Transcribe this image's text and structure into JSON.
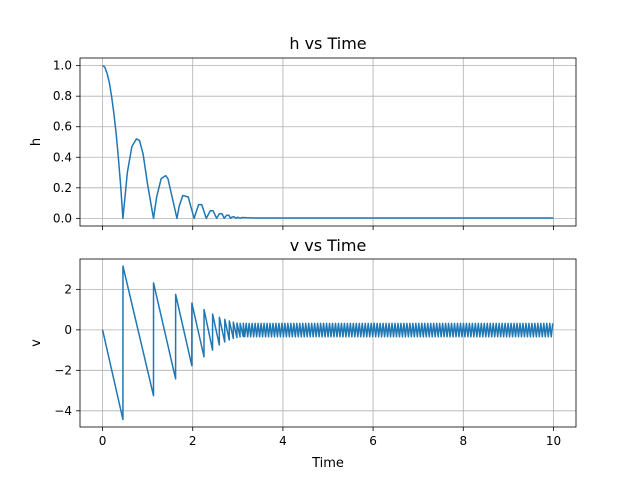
{
  "chart_data": [
    {
      "type": "line",
      "title": "h vs Time",
      "xlabel": "",
      "ylabel": "h",
      "xlim": [
        -0.5,
        10.5
      ],
      "ylim": [
        -0.05,
        1.05
      ],
      "xticks": [
        0,
        2,
        4,
        6,
        8,
        10
      ],
      "show_xtick_labels": false,
      "yticks": [
        0.0,
        0.2,
        0.4,
        0.6,
        0.8,
        1.0
      ],
      "ytick_labels": [
        "0.0",
        "0.2",
        "0.4",
        "0.6",
        "0.8",
        "1.0"
      ],
      "grid": true,
      "series": [
        {
          "color": "#1f77b4",
          "x": [
            0,
            0.05,
            0.1,
            0.15,
            0.2,
            0.25,
            0.3,
            0.35,
            0.4,
            0.452,
            0.55,
            0.65,
            0.75,
            0.82,
            0.9,
            1.0,
            1.1,
            1.13,
            1.2,
            1.3,
            1.4,
            1.45,
            1.55,
            1.65,
            1.7,
            1.78,
            1.9,
            2.03,
            2.13,
            2.2,
            2.3,
            2.39,
            2.45,
            2.53,
            2.59,
            2.65,
            2.7,
            2.75,
            2.8,
            2.84,
            2.88,
            2.92,
            2.96,
            3.0,
            3.05,
            3.1,
            3.2,
            3.3,
            3.5,
            4.0,
            5.0,
            6.0,
            7.0,
            8.0,
            9.0,
            10.0
          ],
          "y": [
            1.0,
            0.99,
            0.95,
            0.89,
            0.8,
            0.69,
            0.56,
            0.4,
            0.22,
            0.0,
            0.3,
            0.47,
            0.52,
            0.51,
            0.42,
            0.22,
            0.05,
            0.0,
            0.14,
            0.26,
            0.28,
            0.26,
            0.13,
            0.0,
            0.08,
            0.15,
            0.14,
            0.0,
            0.09,
            0.09,
            0.0,
            0.05,
            0.05,
            0.0,
            0.03,
            0.03,
            0.0,
            0.02,
            0.02,
            0.0,
            0.01,
            0.01,
            0.0,
            0.008,
            0.0,
            0.006,
            0.004,
            0.003,
            0.002,
            0.002,
            0.002,
            0.002,
            0.002,
            0.002,
            0.002,
            0.002
          ]
        }
      ]
    },
    {
      "type": "line",
      "title": "v vs Time",
      "xlabel": "Time",
      "ylabel": "v",
      "xlim": [
        -0.5,
        10.5
      ],
      "ylim": [
        -4.8,
        3.5
      ],
      "xticks": [
        0,
        2,
        4,
        6,
        8,
        10
      ],
      "show_xtick_labels": true,
      "xtick_labels": [
        "0",
        "2",
        "4",
        "6",
        "8",
        "10"
      ],
      "yticks": [
        -4,
        -2,
        0,
        2
      ],
      "ytick_labels": [
        "−4",
        "−2",
        "0",
        "2"
      ],
      "grid": true,
      "series": [
        {
          "color": "#1f77b4",
          "x": [
            0,
            0.452,
            0.453,
            1.13,
            1.131,
            1.62,
            1.621,
            1.98,
            1.981,
            2.25,
            2.251,
            2.44,
            2.441,
            2.59,
            2.591,
            2.71,
            2.711,
            2.81,
            2.811,
            2.9,
            2.901,
            2.98,
            2.981,
            3.05,
            3.051,
            3.12,
            3.121
          ],
          "y": [
            0,
            -4.43,
            3.15,
            -3.25,
            2.32,
            -2.42,
            1.75,
            -1.77,
            1.32,
            -1.33,
            1.0,
            -1.0,
            0.78,
            -0.75,
            0.62,
            -0.6,
            0.52,
            -0.5,
            0.44,
            -0.42,
            0.38,
            -0.38,
            0.34,
            -0.35,
            0.32,
            -0.33,
            0.32
          ]
        }
      ],
      "steady_oscillation": {
        "x_start": 3.12,
        "x_end": 10.0,
        "period": 0.066,
        "high": 0.32,
        "low": -0.34
      }
    }
  ]
}
